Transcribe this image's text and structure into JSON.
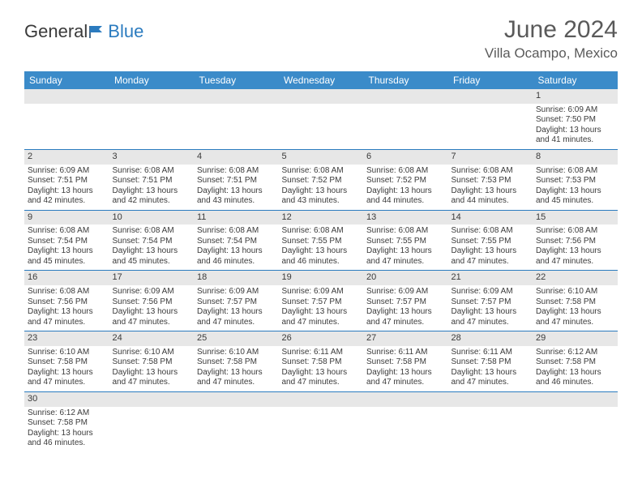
{
  "brand": {
    "part1": "General",
    "part2": "Blue"
  },
  "title": "June 2024",
  "location": "Villa Ocampo, Mexico",
  "colors": {
    "header_bg": "#3b8bc9",
    "header_text": "#ffffff",
    "daynum_bg": "#e7e7e7",
    "border": "#2b7bbf",
    "text": "#3a3a3a",
    "title_text": "#5a5a5a",
    "brand_blue": "#2b7bbf"
  },
  "weekdays": [
    "Sunday",
    "Monday",
    "Tuesday",
    "Wednesday",
    "Thursday",
    "Friday",
    "Saturday"
  ],
  "weeks": [
    [
      null,
      null,
      null,
      null,
      null,
      null,
      {
        "d": "1",
        "sr": "Sunrise: 6:09 AM",
        "ss": "Sunset: 7:50 PM",
        "dl": "Daylight: 13 hours and 41 minutes."
      }
    ],
    [
      {
        "d": "2",
        "sr": "Sunrise: 6:09 AM",
        "ss": "Sunset: 7:51 PM",
        "dl": "Daylight: 13 hours and 42 minutes."
      },
      {
        "d": "3",
        "sr": "Sunrise: 6:08 AM",
        "ss": "Sunset: 7:51 PM",
        "dl": "Daylight: 13 hours and 42 minutes."
      },
      {
        "d": "4",
        "sr": "Sunrise: 6:08 AM",
        "ss": "Sunset: 7:51 PM",
        "dl": "Daylight: 13 hours and 43 minutes."
      },
      {
        "d": "5",
        "sr": "Sunrise: 6:08 AM",
        "ss": "Sunset: 7:52 PM",
        "dl": "Daylight: 13 hours and 43 minutes."
      },
      {
        "d": "6",
        "sr": "Sunrise: 6:08 AM",
        "ss": "Sunset: 7:52 PM",
        "dl": "Daylight: 13 hours and 44 minutes."
      },
      {
        "d": "7",
        "sr": "Sunrise: 6:08 AM",
        "ss": "Sunset: 7:53 PM",
        "dl": "Daylight: 13 hours and 44 minutes."
      },
      {
        "d": "8",
        "sr": "Sunrise: 6:08 AM",
        "ss": "Sunset: 7:53 PM",
        "dl": "Daylight: 13 hours and 45 minutes."
      }
    ],
    [
      {
        "d": "9",
        "sr": "Sunrise: 6:08 AM",
        "ss": "Sunset: 7:54 PM",
        "dl": "Daylight: 13 hours and 45 minutes."
      },
      {
        "d": "10",
        "sr": "Sunrise: 6:08 AM",
        "ss": "Sunset: 7:54 PM",
        "dl": "Daylight: 13 hours and 45 minutes."
      },
      {
        "d": "11",
        "sr": "Sunrise: 6:08 AM",
        "ss": "Sunset: 7:54 PM",
        "dl": "Daylight: 13 hours and 46 minutes."
      },
      {
        "d": "12",
        "sr": "Sunrise: 6:08 AM",
        "ss": "Sunset: 7:55 PM",
        "dl": "Daylight: 13 hours and 46 minutes."
      },
      {
        "d": "13",
        "sr": "Sunrise: 6:08 AM",
        "ss": "Sunset: 7:55 PM",
        "dl": "Daylight: 13 hours and 47 minutes."
      },
      {
        "d": "14",
        "sr": "Sunrise: 6:08 AM",
        "ss": "Sunset: 7:55 PM",
        "dl": "Daylight: 13 hours and 47 minutes."
      },
      {
        "d": "15",
        "sr": "Sunrise: 6:08 AM",
        "ss": "Sunset: 7:56 PM",
        "dl": "Daylight: 13 hours and 47 minutes."
      }
    ],
    [
      {
        "d": "16",
        "sr": "Sunrise: 6:08 AM",
        "ss": "Sunset: 7:56 PM",
        "dl": "Daylight: 13 hours and 47 minutes."
      },
      {
        "d": "17",
        "sr": "Sunrise: 6:09 AM",
        "ss": "Sunset: 7:56 PM",
        "dl": "Daylight: 13 hours and 47 minutes."
      },
      {
        "d": "18",
        "sr": "Sunrise: 6:09 AM",
        "ss": "Sunset: 7:57 PM",
        "dl": "Daylight: 13 hours and 47 minutes."
      },
      {
        "d": "19",
        "sr": "Sunrise: 6:09 AM",
        "ss": "Sunset: 7:57 PM",
        "dl": "Daylight: 13 hours and 47 minutes."
      },
      {
        "d": "20",
        "sr": "Sunrise: 6:09 AM",
        "ss": "Sunset: 7:57 PM",
        "dl": "Daylight: 13 hours and 47 minutes."
      },
      {
        "d": "21",
        "sr": "Sunrise: 6:09 AM",
        "ss": "Sunset: 7:57 PM",
        "dl": "Daylight: 13 hours and 47 minutes."
      },
      {
        "d": "22",
        "sr": "Sunrise: 6:10 AM",
        "ss": "Sunset: 7:58 PM",
        "dl": "Daylight: 13 hours and 47 minutes."
      }
    ],
    [
      {
        "d": "23",
        "sr": "Sunrise: 6:10 AM",
        "ss": "Sunset: 7:58 PM",
        "dl": "Daylight: 13 hours and 47 minutes."
      },
      {
        "d": "24",
        "sr": "Sunrise: 6:10 AM",
        "ss": "Sunset: 7:58 PM",
        "dl": "Daylight: 13 hours and 47 minutes."
      },
      {
        "d": "25",
        "sr": "Sunrise: 6:10 AM",
        "ss": "Sunset: 7:58 PM",
        "dl": "Daylight: 13 hours and 47 minutes."
      },
      {
        "d": "26",
        "sr": "Sunrise: 6:11 AM",
        "ss": "Sunset: 7:58 PM",
        "dl": "Daylight: 13 hours and 47 minutes."
      },
      {
        "d": "27",
        "sr": "Sunrise: 6:11 AM",
        "ss": "Sunset: 7:58 PM",
        "dl": "Daylight: 13 hours and 47 minutes."
      },
      {
        "d": "28",
        "sr": "Sunrise: 6:11 AM",
        "ss": "Sunset: 7:58 PM",
        "dl": "Daylight: 13 hours and 47 minutes."
      },
      {
        "d": "29",
        "sr": "Sunrise: 6:12 AM",
        "ss": "Sunset: 7:58 PM",
        "dl": "Daylight: 13 hours and 46 minutes."
      }
    ],
    [
      {
        "d": "30",
        "sr": "Sunrise: 6:12 AM",
        "ss": "Sunset: 7:58 PM",
        "dl": "Daylight: 13 hours and 46 minutes."
      },
      null,
      null,
      null,
      null,
      null,
      null
    ]
  ]
}
